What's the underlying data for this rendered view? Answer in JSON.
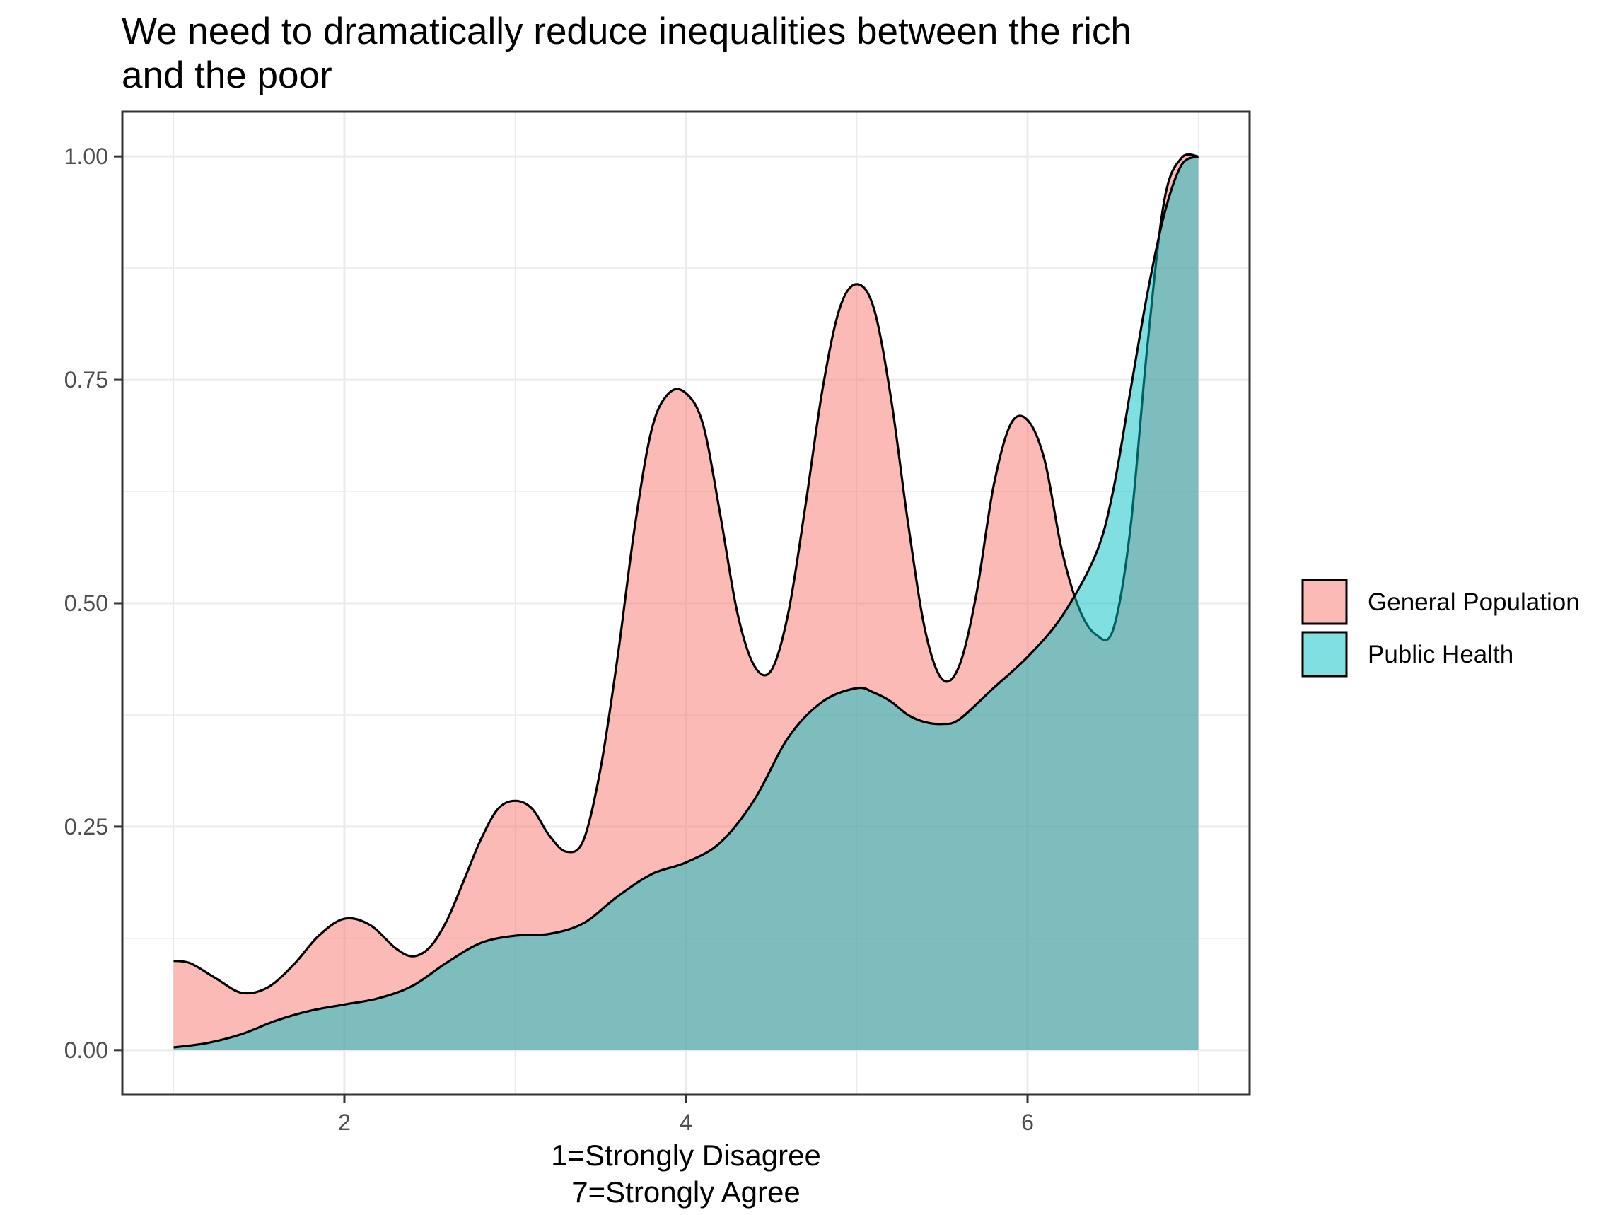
{
  "chart_data": {
    "type": "area",
    "title_lines": [
      "We need to dramatically reduce inequalities between the rich",
      "and the poor"
    ],
    "xlabel_lines": [
      "1=Strongly Disagree",
      "7=Strongly Agree"
    ],
    "ylabel": "",
    "xlim": [
      0.7,
      7.3
    ],
    "ylim": [
      -0.05,
      1.05
    ],
    "x_ticks": [
      2,
      4,
      6
    ],
    "x_tick_labels": [
      "2",
      "4",
      "6"
    ],
    "y_ticks": [
      0,
      0.25,
      0.5,
      0.75,
      1
    ],
    "y_tick_labels": [
      "0.00",
      "0.25",
      "0.50",
      "0.75",
      "1.00"
    ],
    "grid": true,
    "legend_position": "right",
    "series": [
      {
        "name": "General Population",
        "color": "#F8766D",
        "points": [
          [
            1.0,
            0.1
          ],
          [
            1.1,
            0.097
          ],
          [
            1.25,
            0.08
          ],
          [
            1.4,
            0.064
          ],
          [
            1.55,
            0.07
          ],
          [
            1.7,
            0.095
          ],
          [
            1.85,
            0.128
          ],
          [
            2.0,
            0.147
          ],
          [
            2.15,
            0.14
          ],
          [
            2.3,
            0.114
          ],
          [
            2.4,
            0.105
          ],
          [
            2.5,
            0.115
          ],
          [
            2.6,
            0.145
          ],
          [
            2.7,
            0.19
          ],
          [
            2.8,
            0.236
          ],
          [
            2.9,
            0.27
          ],
          [
            3.0,
            0.279
          ],
          [
            3.1,
            0.27
          ],
          [
            3.2,
            0.24
          ],
          [
            3.3,
            0.222
          ],
          [
            3.4,
            0.235
          ],
          [
            3.5,
            0.315
          ],
          [
            3.6,
            0.44
          ],
          [
            3.7,
            0.585
          ],
          [
            3.8,
            0.695
          ],
          [
            3.9,
            0.735
          ],
          [
            4.0,
            0.735
          ],
          [
            4.1,
            0.7
          ],
          [
            4.2,
            0.6
          ],
          [
            4.3,
            0.49
          ],
          [
            4.4,
            0.43
          ],
          [
            4.5,
            0.425
          ],
          [
            4.6,
            0.49
          ],
          [
            4.7,
            0.61
          ],
          [
            4.8,
            0.74
          ],
          [
            4.9,
            0.83
          ],
          [
            5.0,
            0.857
          ],
          [
            5.1,
            0.83
          ],
          [
            5.2,
            0.73
          ],
          [
            5.3,
            0.59
          ],
          [
            5.4,
            0.47
          ],
          [
            5.5,
            0.415
          ],
          [
            5.6,
            0.43
          ],
          [
            5.7,
            0.51
          ],
          [
            5.8,
            0.63
          ],
          [
            5.9,
            0.7
          ],
          [
            6.0,
            0.705
          ],
          [
            6.1,
            0.66
          ],
          [
            6.2,
            0.56
          ],
          [
            6.3,
            0.495
          ],
          [
            6.4,
            0.465
          ],
          [
            6.5,
            0.47
          ],
          [
            6.6,
            0.58
          ],
          [
            6.7,
            0.785
          ],
          [
            6.8,
            0.95
          ],
          [
            6.9,
            0.998
          ],
          [
            7.0,
            1.0
          ]
        ]
      },
      {
        "name": "Public Health",
        "color": "#00BFC4",
        "points": [
          [
            1.0,
            0.003
          ],
          [
            1.2,
            0.008
          ],
          [
            1.4,
            0.018
          ],
          [
            1.6,
            0.033
          ],
          [
            1.8,
            0.044
          ],
          [
            2.0,
            0.051
          ],
          [
            2.2,
            0.058
          ],
          [
            2.4,
            0.072
          ],
          [
            2.6,
            0.098
          ],
          [
            2.8,
            0.12
          ],
          [
            3.0,
            0.128
          ],
          [
            3.2,
            0.13
          ],
          [
            3.4,
            0.142
          ],
          [
            3.6,
            0.172
          ],
          [
            3.8,
            0.197
          ],
          [
            4.0,
            0.21
          ],
          [
            4.2,
            0.232
          ],
          [
            4.4,
            0.28
          ],
          [
            4.6,
            0.35
          ],
          [
            4.8,
            0.39
          ],
          [
            5.0,
            0.405
          ],
          [
            5.1,
            0.4
          ],
          [
            5.2,
            0.39
          ],
          [
            5.3,
            0.375
          ],
          [
            5.4,
            0.367
          ],
          [
            5.5,
            0.365
          ],
          [
            5.6,
            0.37
          ],
          [
            5.8,
            0.405
          ],
          [
            6.0,
            0.44
          ],
          [
            6.2,
            0.485
          ],
          [
            6.4,
            0.555
          ],
          [
            6.5,
            0.625
          ],
          [
            6.6,
            0.735
          ],
          [
            6.7,
            0.845
          ],
          [
            6.8,
            0.935
          ],
          [
            6.9,
            0.99
          ],
          [
            7.0,
            1.0
          ]
        ]
      }
    ]
  }
}
